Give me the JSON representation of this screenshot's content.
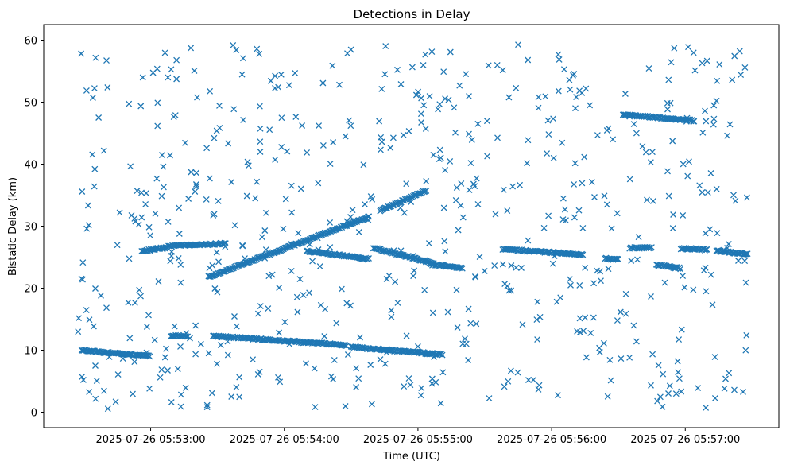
{
  "chart_data": {
    "type": "scatter",
    "title": "Detections in Delay",
    "xlabel": "Time (UTC)",
    "ylabel": "Bistatic Delay (km)",
    "marker": "x",
    "marker_color": "#1f77b4",
    "x_ticks": [
      {
        "t": 60,
        "label": "2025-07-26 05:53:00"
      },
      {
        "t": 120,
        "label": "2025-07-26 05:54:00"
      },
      {
        "t": 180,
        "label": "2025-07-26 05:55:00"
      },
      {
        "t": 240,
        "label": "2025-07-26 05:56:00"
      },
      {
        "t": 300,
        "label": "2025-07-26 05:57:00"
      }
    ],
    "y_ticks": [
      0,
      10,
      20,
      30,
      40,
      50,
      60
    ],
    "xlim": [
      "2025-07-26 05:52:12",
      "2025-07-26 05:57:42"
    ],
    "ylim": [
      -2.5,
      62.5
    ],
    "grid": false,
    "legend": "none",
    "tracks": [
      {
        "name": "",
        "t_start": 29,
        "t_end": 60,
        "delay_start": 10.0,
        "delay_end": 9.0
      },
      {
        "name": "",
        "t_start": 69,
        "t_end": 77,
        "delay_start": 12.3,
        "delay_end": 12.3
      },
      {
        "name": "",
        "t_start": 88,
        "t_end": 148,
        "delay_start": 12.3,
        "delay_end": 10.8
      },
      {
        "name": "",
        "t_start": 150,
        "t_end": 191,
        "delay_start": 10.5,
        "delay_end": 9.3
      },
      {
        "name": "",
        "t_start": 56,
        "t_end": 68,
        "delay_start": 26.0,
        "delay_end": 26.6
      },
      {
        "name": "",
        "t_start": 68,
        "t_end": 94,
        "delay_start": 26.8,
        "delay_end": 27.2
      },
      {
        "name": "",
        "t_start": 86,
        "t_end": 158,
        "delay_start": 21.8,
        "delay_end": 31.5
      },
      {
        "name": "",
        "t_start": 130,
        "t_end": 158,
        "delay_start": 26.0,
        "delay_end": 24.7
      },
      {
        "name": "",
        "t_start": 160,
        "t_end": 187,
        "delay_start": 26.5,
        "delay_end": 24.0
      },
      {
        "name": "",
        "t_start": 163,
        "t_end": 184,
        "delay_start": 32.5,
        "delay_end": 35.8
      },
      {
        "name": "",
        "t_start": 186,
        "t_end": 200,
        "delay_start": 23.8,
        "delay_end": 23.3
      },
      {
        "name": "",
        "t_start": 218,
        "t_end": 254,
        "delay_start": 26.3,
        "delay_end": 25.4
      },
      {
        "name": "",
        "t_start": 264,
        "t_end": 270,
        "delay_start": 24.8,
        "delay_end": 24.6
      },
      {
        "name": "",
        "t_start": 272,
        "t_end": 304,
        "delay_start": 48.0,
        "delay_end": 47.0
      },
      {
        "name": "",
        "t_start": 275,
        "t_end": 285,
        "delay_start": 26.5,
        "delay_end": 26.5
      },
      {
        "name": "",
        "t_start": 287,
        "t_end": 298,
        "delay_start": 23.8,
        "delay_end": 23.2
      },
      {
        "name": "",
        "t_start": 298,
        "t_end": 310,
        "delay_start": 26.4,
        "delay_end": 26.2
      },
      {
        "name": "",
        "t_start": 314,
        "t_end": 328,
        "delay_start": 26.0,
        "delay_end": 25.5
      }
    ],
    "clutter": {
      "count": 620,
      "t_range": [
        27,
        328
      ],
      "delay_range": [
        0.5,
        59.5
      ],
      "seed": 20250726
    }
  }
}
